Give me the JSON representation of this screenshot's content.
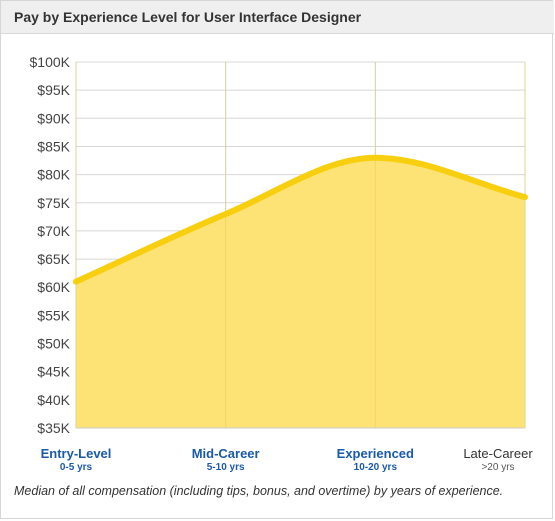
{
  "header": {
    "title": "Pay by Experience Level for User Interface Designer"
  },
  "caption": "Median of all compensation (including tips, bonus, and overtime) by years of experience.",
  "colors": {
    "fill": "#fde275",
    "line": "#f8cf0e",
    "grid": "#d8d8d8",
    "label_blue": "#1a5aa8"
  },
  "chart_data": {
    "type": "area",
    "categories": [
      {
        "label": "Entry-Level",
        "sublabel": "0-5 yrs",
        "highlighted": true
      },
      {
        "label": "Mid-Career",
        "sublabel": "5-10 yrs",
        "highlighted": true
      },
      {
        "label": "Experienced",
        "sublabel": "10-20 yrs",
        "highlighted": true
      },
      {
        "label": "Late-Career",
        "sublabel": ">20 yrs",
        "highlighted": false
      }
    ],
    "values": [
      61000,
      73000,
      83000,
      76000
    ],
    "ylim": [
      35000,
      100000
    ],
    "yticks": [
      "$100K",
      "$95K",
      "$90K",
      "$85K",
      "$80K",
      "$75K",
      "$70K",
      "$65K",
      "$60K",
      "$55K",
      "$50K",
      "$45K",
      "$40K",
      "$35K"
    ],
    "grid": true,
    "smooth": true
  }
}
